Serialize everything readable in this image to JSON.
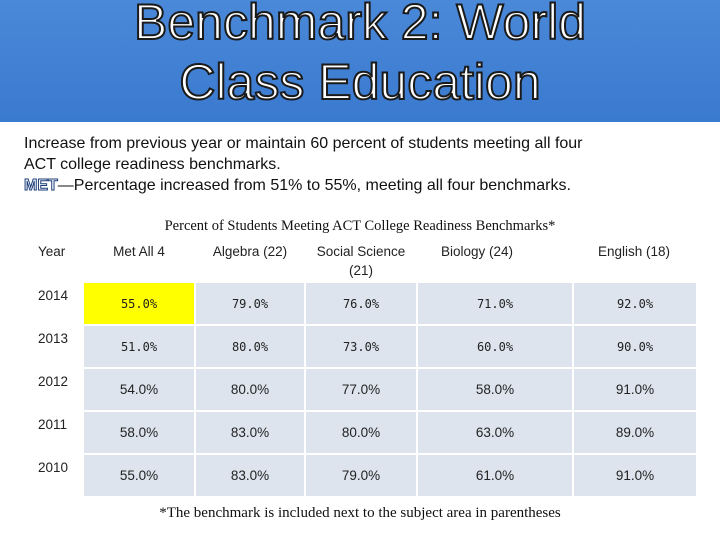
{
  "title": {
    "line1": "Benchmark 2: World",
    "line2": "Class Education"
  },
  "text": {
    "line1": "Increase from previous year or maintain 60 percent of students meeting all four",
    "line2": "ACT college readiness benchmarks.",
    "met": "MET",
    "line3": "—Percentage increased from 51% to 55%, meeting all four benchmarks."
  },
  "table": {
    "caption": "Percent of Students Meeting ACT College Readiness Benchmarks*",
    "year_header": "Year",
    "headers": [
      "Met All 4",
      "Algebra (22)",
      "Social Science (21)",
      "Biology (24)",
      "English (18)"
    ],
    "rows": [
      {
        "year": "2014",
        "values": [
          "55.0%",
          "79.0%",
          "76.0%",
          "71.0%",
          "92.0%"
        ]
      },
      {
        "year": "2013",
        "values": [
          "51.0%",
          "80.0%",
          "73.0%",
          "60.0%",
          "90.0%"
        ]
      },
      {
        "year": "2012",
        "values": [
          "54.0%",
          "80.0%",
          "77.0%",
          "58.0%",
          "91.0%"
        ]
      },
      {
        "year": "2011",
        "values": [
          "58.0%",
          "83.0%",
          "80.0%",
          "63.0%",
          "89.0%"
        ]
      },
      {
        "year": "2010",
        "values": [
          "55.0%",
          "83.0%",
          "79.0%",
          "61.0%",
          "91.0%"
        ]
      }
    ],
    "footnote": "*The benchmark is included next to the subject area in parentheses"
  },
  "colors": {
    "banner": "#3a7acf",
    "cell": "#dde4ee",
    "highlight": "#ffff00"
  }
}
